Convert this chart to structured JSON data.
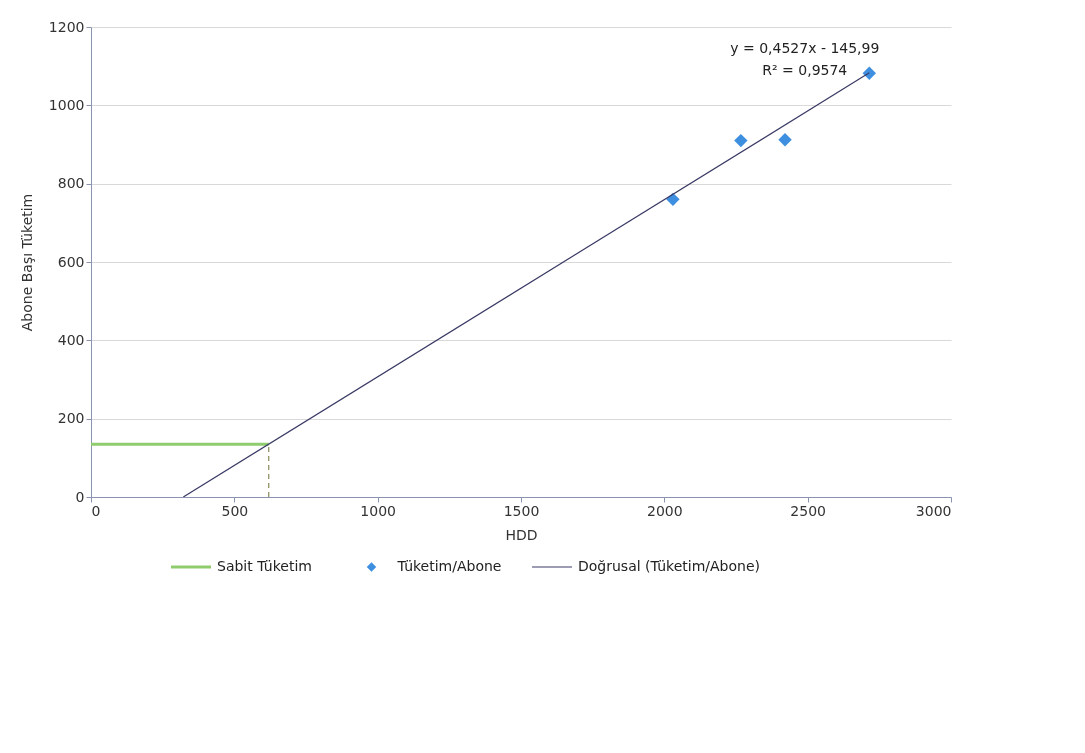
{
  "chart_data": {
    "type": "scatter",
    "xlabel": "HDD",
    "ylabel": "Abone Başı Tüketim",
    "xlim": [
      0,
      3000
    ],
    "xticks": [
      0,
      500,
      1000,
      1500,
      2000,
      2500,
      3000
    ],
    "ylim": [
      0,
      1200
    ],
    "yticks": [
      0,
      200,
      400,
      600,
      800,
      1000,
      1200
    ],
    "grid": "y",
    "legend": "bottom",
    "annotations": [
      "y = 0,4527x - 145,99",
      "R² = 0,9574"
    ],
    "series": [
      {
        "name": "Sabit Tüketim",
        "type": "line",
        "color": "#8fcc6e",
        "x": [
          0,
          620
        ],
        "values": [
          135,
          135
        ]
      },
      {
        "type": "line",
        "color": "#8a8a5a",
        "line_style": "dashed",
        "x": [
          620,
          620
        ],
        "values": [
          0,
          135
        ]
      },
      {
        "name": "Tüketim/Abone",
        "marker": "diamond",
        "color": "#3f8fe0",
        "x": [
          2030,
          2267,
          2421,
          2715
        ],
        "values": [
          760,
          910,
          912,
          1082
        ]
      },
      {
        "name": "Doğrusal (Tüketim/Abone)",
        "type": "line",
        "color": "#3a3a66",
        "x": [
          322,
          2715
        ],
        "values": [
          0,
          1083
        ]
      }
    ]
  }
}
